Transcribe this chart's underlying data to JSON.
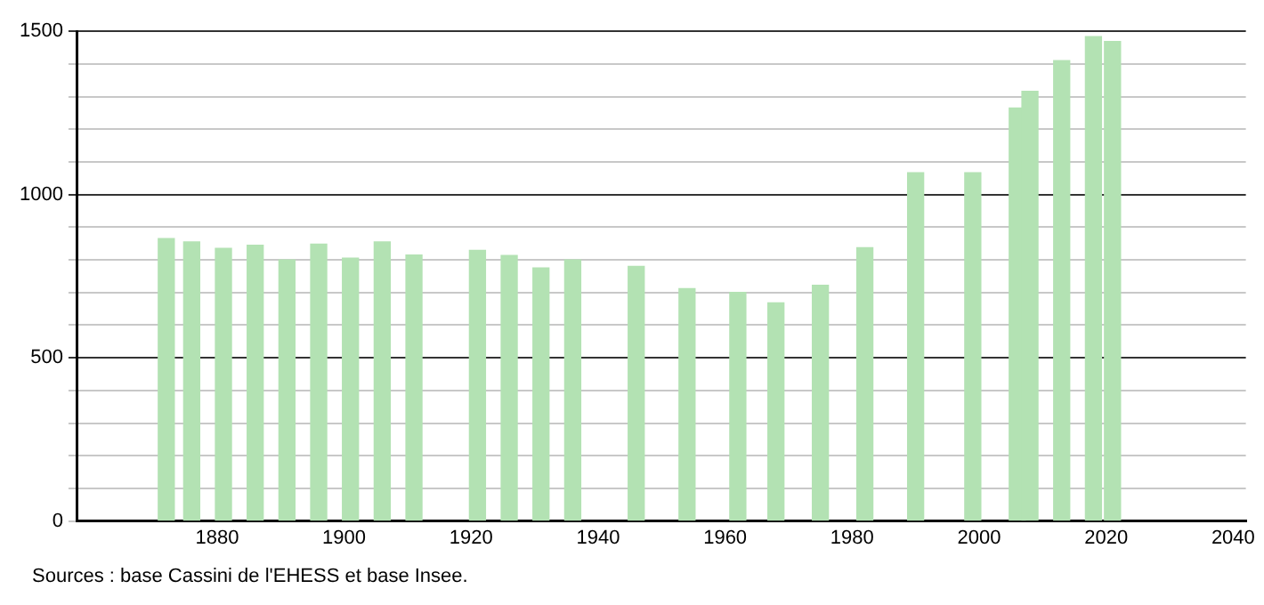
{
  "chart_data": {
    "type": "bar",
    "x": [
      1872,
      1876,
      1881,
      1886,
      1891,
      1896,
      1901,
      1906,
      1911,
      1921,
      1926,
      1931,
      1936,
      1946,
      1954,
      1962,
      1968,
      1975,
      1982,
      1990,
      1999,
      2006,
      2008,
      2013,
      2018,
      2021
    ],
    "values": [
      865,
      855,
      835,
      845,
      800,
      848,
      805,
      855,
      815,
      829,
      813,
      775,
      800,
      780,
      712,
      700,
      668,
      722,
      837,
      1067,
      1067,
      1265,
      1316,
      1410,
      1484,
      1469
    ],
    "color": "#b3e2b3",
    "xlim": [
      1858,
      2042
    ],
    "xticks": [
      1880,
      1900,
      1920,
      1940,
      1960,
      1980,
      2000,
      2020,
      2040
    ],
    "ylim": [
      0,
      1500
    ],
    "yticks": [
      0,
      {
        "value": 100,
        "label": null
      },
      {
        "value": 200,
        "label": null
      },
      {
        "value": 300,
        "label": null
      },
      {
        "value": 400,
        "label": null
      },
      500,
      {
        "value": 600,
        "label": null
      },
      {
        "value": 700,
        "label": null
      },
      {
        "value": 800,
        "label": null
      },
      {
        "value": 900,
        "label": null
      },
      1000,
      {
        "value": 1100,
        "label": null
      },
      {
        "value": 1200,
        "label": null
      },
      {
        "value": 1300,
        "label": null
      },
      {
        "value": 1400,
        "label": null
      },
      1500
    ],
    "grid": "y",
    "annotations": [
      "Sources : base Cassini de l'EHESS et base Insee."
    ]
  }
}
